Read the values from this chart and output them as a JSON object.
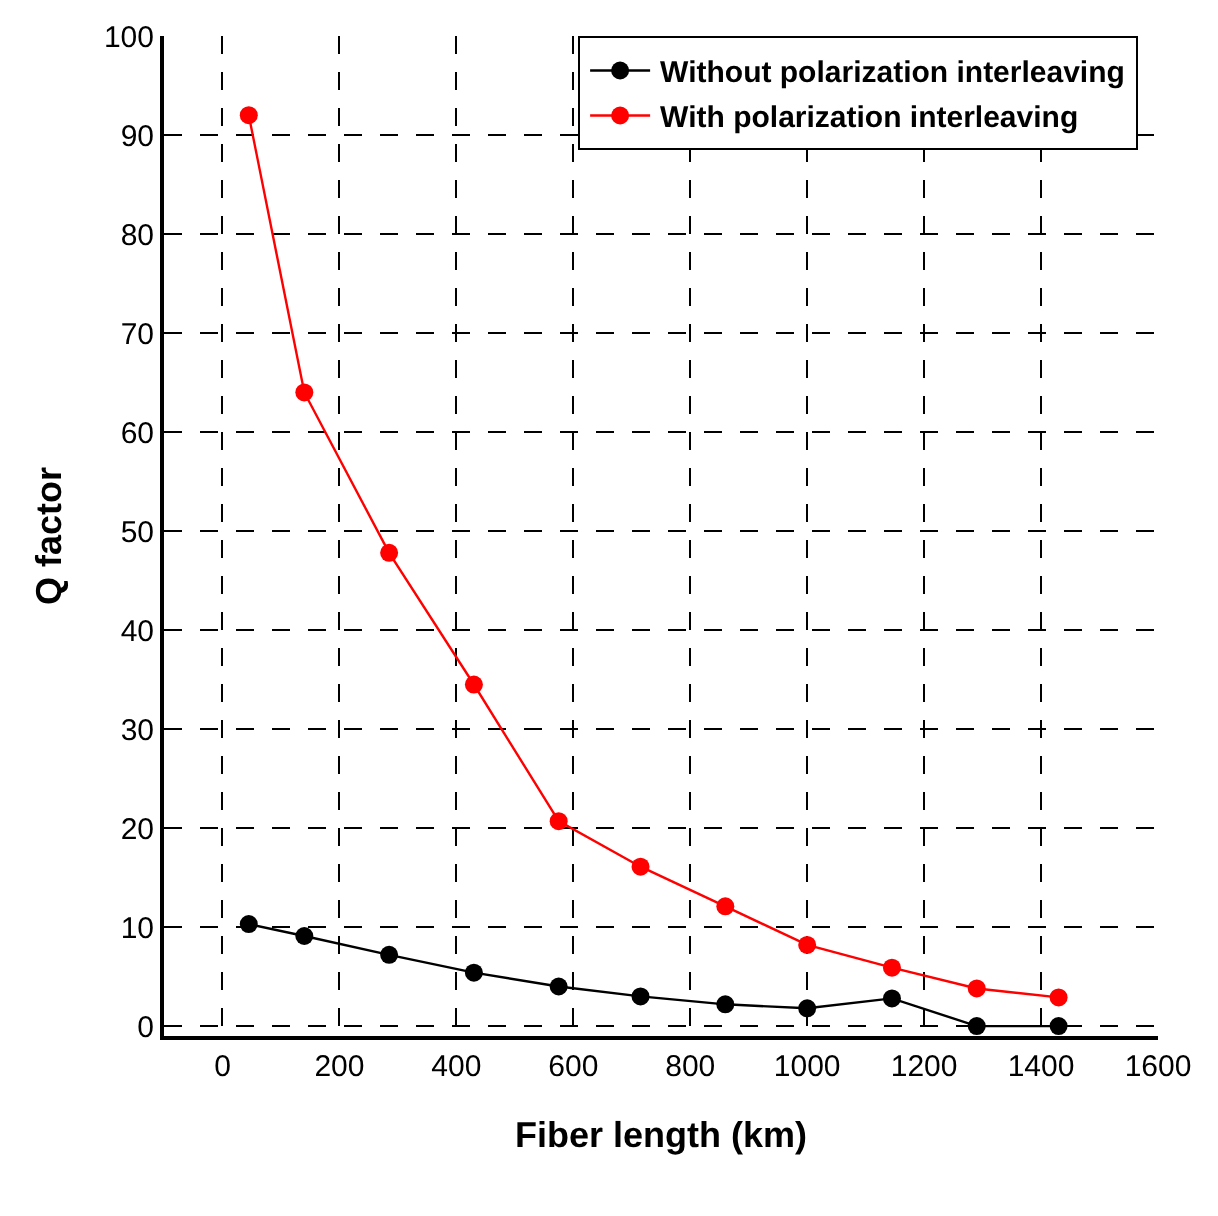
{
  "chart_data": {
    "type": "line",
    "xlabel": "Fiber length (km)",
    "ylabel": "Q factor",
    "x": [
      45,
      140,
      285,
      430,
      575,
      715,
      860,
      1000,
      1145,
      1290,
      1430
    ],
    "series": [
      {
        "name": "Without polarization interleaving",
        "color": "#000000",
        "values": [
          10.3,
          9.1,
          7.2,
          5.4,
          4.0,
          3.0,
          2.2,
          1.8,
          2.8,
          0,
          0
        ]
      },
      {
        "name": "With polarization interleaving",
        "color": "#ff0000",
        "values": [
          92,
          64,
          47.8,
          34.5,
          20.7,
          16.1,
          12.1,
          8.2,
          5.9,
          3.8,
          2.9
        ]
      }
    ],
    "xlim": [
      -100,
      1600
    ],
    "xticks": [
      0,
      200,
      400,
      600,
      800,
      1000,
      1200,
      1400,
      1600
    ],
    "ylim": [
      -1,
      100
    ],
    "yticks": [
      0,
      10,
      20,
      30,
      40,
      50,
      60,
      70,
      80,
      90,
      100
    ],
    "grid": true,
    "legend": "top right",
    "marker": "circle",
    "line_style": "solid"
  }
}
